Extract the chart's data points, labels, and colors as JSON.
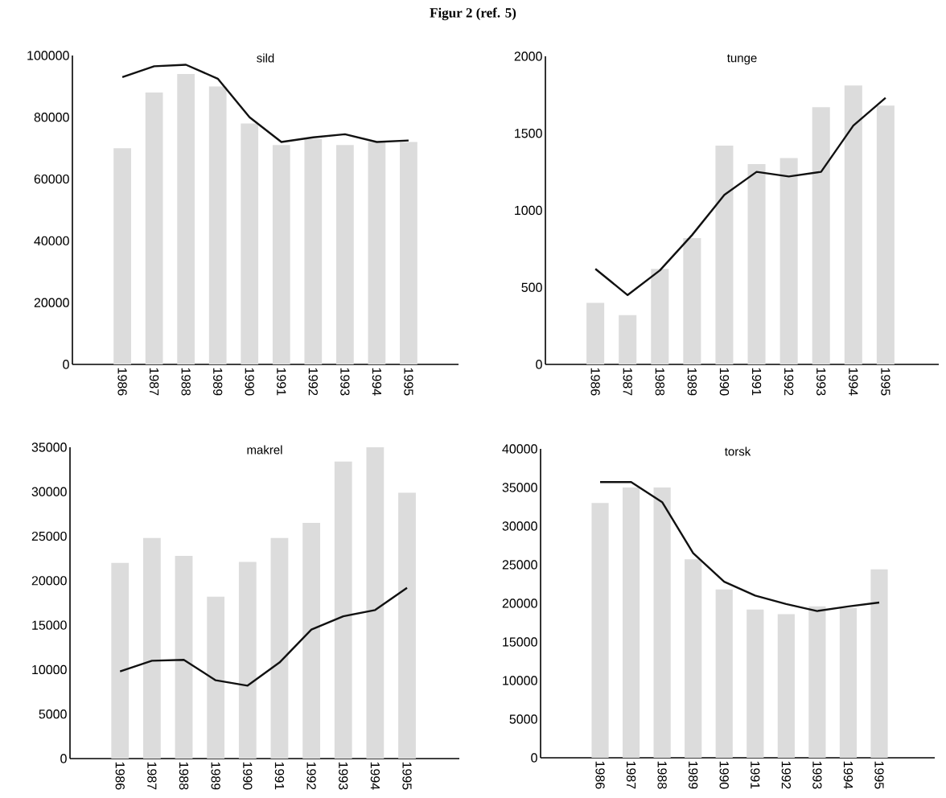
{
  "chart_data": [
    {
      "type": "bar",
      "title": "sild",
      "annotations": [
        "Figur 2 (ref. 5)"
      ],
      "categories": [
        "1986",
        "1987",
        "1988",
        "1989",
        "1990",
        "1991",
        "1992",
        "1993",
        "1994",
        "1995"
      ],
      "ylim": [
        0,
        100000
      ],
      "yticks": [
        0,
        20000,
        40000,
        60000,
        80000,
        100000
      ],
      "series": [
        {
          "color": "#dcdcdc",
          "values": [
            70000,
            88000,
            94000,
            90000,
            78000,
            71000,
            73000,
            71000,
            72000,
            72000
          ]
        },
        {
          "type": "line",
          "color": "#111111",
          "values": [
            93000,
            96500,
            97000,
            92500,
            80000,
            72000,
            73500,
            74500,
            72000,
            72500
          ]
        }
      ]
    },
    {
      "type": "bar",
      "title": "tunge",
      "categories": [
        "1986",
        "1987",
        "1988",
        "1989",
        "1990",
        "1991",
        "1992",
        "1993",
        "1994",
        "1995"
      ],
      "ylim": [
        0,
        2000
      ],
      "yticks": [
        0,
        500,
        1000,
        1500,
        2000
      ],
      "series": [
        {
          "color": "#dcdcdc",
          "values": [
            400,
            320,
            620,
            820,
            1420,
            1300,
            1340,
            1670,
            1810,
            1680
          ]
        },
        {
          "type": "line",
          "color": "#111111",
          "values": [
            620,
            450,
            610,
            840,
            1100,
            1250,
            1220,
            1250,
            1550,
            1730
          ]
        }
      ]
    },
    {
      "type": "bar",
      "title": "makrel",
      "categories": [
        "1986",
        "1987",
        "1988",
        "1989",
        "1990",
        "1991",
        "1992",
        "1993",
        "1994",
        "1995"
      ],
      "ylim": [
        0,
        35000
      ],
      "yticks": [
        0,
        5000,
        10000,
        15000,
        20000,
        25000,
        30000,
        35000
      ],
      "series": [
        {
          "color": "#dcdcdc",
          "values": [
            22000,
            24800,
            22800,
            18200,
            22100,
            24800,
            26500,
            33400,
            35000,
            29900
          ]
        },
        {
          "type": "line",
          "color": "#111111",
          "values": [
            9800,
            11000,
            11100,
            8800,
            8200,
            10800,
            14500,
            16000,
            16700,
            19200
          ]
        }
      ]
    },
    {
      "type": "bar",
      "title": "torsk",
      "categories": [
        "1986",
        "1987",
        "1988",
        "1989",
        "1990",
        "1991",
        "1992",
        "1993",
        "1994",
        "1995"
      ],
      "ylim": [
        0,
        40000
      ],
      "yticks": [
        0,
        5000,
        10000,
        15000,
        20000,
        25000,
        30000,
        35000,
        40000
      ],
      "series": [
        {
          "color": "#dcdcdc",
          "values": [
            33000,
            35000,
            35000,
            25700,
            21800,
            19200,
            18600,
            19600,
            19400,
            24400
          ]
        },
        {
          "type": "line",
          "color": "#111111",
          "values": [
            35700,
            35700,
            33100,
            26500,
            22800,
            21000,
            19900,
            19000,
            19600,
            20100
          ]
        }
      ]
    }
  ]
}
